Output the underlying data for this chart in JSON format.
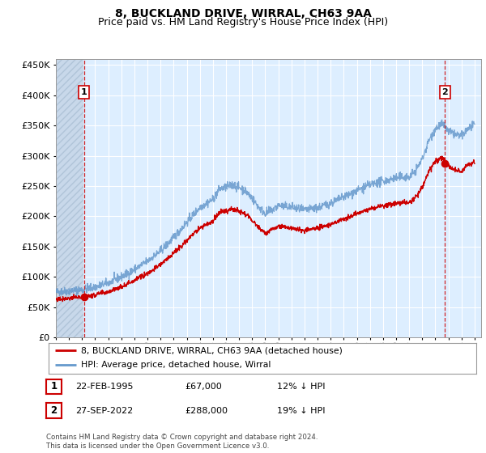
{
  "title": "8, BUCKLAND DRIVE, WIRRAL, CH63 9AA",
  "subtitle": "Price paid vs. HM Land Registry's House Price Index (HPI)",
  "ylim": [
    0,
    460000
  ],
  "yticks": [
    0,
    50000,
    100000,
    150000,
    200000,
    250000,
    300000,
    350000,
    400000,
    450000
  ],
  "background_color": "#ddeeff",
  "fig_color": "#ffffff",
  "grid_color": "#ffffff",
  "red_line_color": "#cc0000",
  "blue_line_color": "#6699cc",
  "marker1_date": 1995.14,
  "marker1_value": 67000,
  "marker2_date": 2022.74,
  "marker2_value": 288000,
  "legend_line1": "8, BUCKLAND DRIVE, WIRRAL, CH63 9AA (detached house)",
  "legend_line2": "HPI: Average price, detached house, Wirral",
  "table_row1": [
    "1",
    "22-FEB-1995",
    "£67,000",
    "12% ↓ HPI"
  ],
  "table_row2": [
    "2",
    "27-SEP-2022",
    "£288,000",
    "19% ↓ HPI"
  ],
  "footer": "Contains HM Land Registry data © Crown copyright and database right 2024.\nThis data is licensed under the Open Government Licence v3.0.",
  "title_fontsize": 10,
  "subtitle_fontsize": 9
}
